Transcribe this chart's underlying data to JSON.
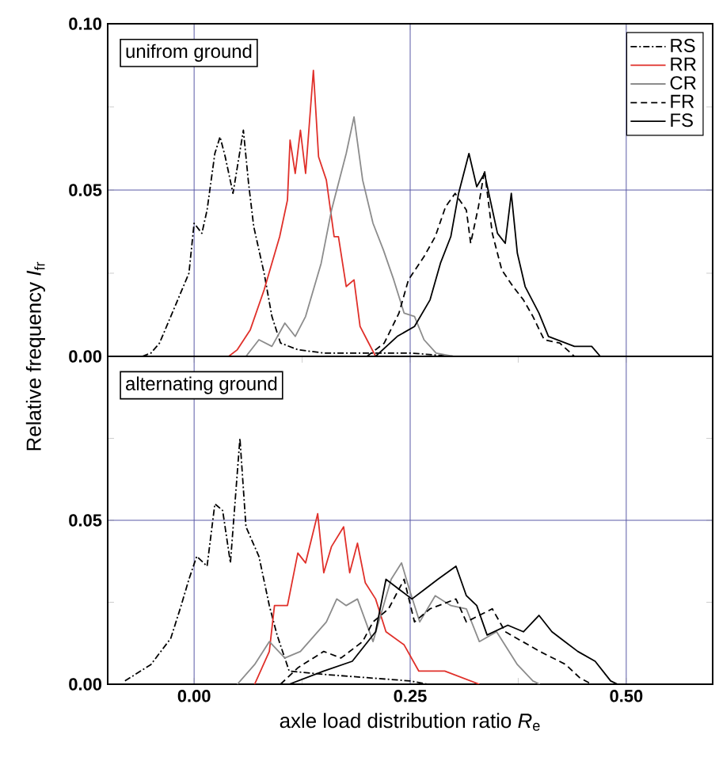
{
  "chart_data": [
    {
      "type": "line",
      "title": "unifrom ground",
      "ylabel": "Relative frequency *I*$_{fr}$",
      "grid": true,
      "legend": "top right",
      "tick_labels": "y",
      "xlim": [
        -0.1,
        0.6
      ],
      "ylim": [
        0,
        0.1
      ],
      "xticks": [
        {
          "value": 0,
          "label": null
        },
        {
          "value": 0.25,
          "label": null
        },
        {
          "value": 0.5,
          "label": null
        }
      ],
      "yticks": [
        {
          "value": 0,
          "label": "0.00"
        },
        {
          "value": 0.025,
          "label": null
        },
        {
          "value": 0.05,
          "label": "0.05"
        },
        {
          "value": 0.075,
          "label": null
        },
        {
          "value": 0.1,
          "label": "0.10"
        }
      ],
      "series": [
        {
          "name": "RS",
          "color": "#000000",
          "line_style": "dashdot",
          "x": [
            -0.06,
            -0.05,
            -0.04,
            -0.027,
            -0.006,
            0.0,
            0.009,
            0.015,
            0.024,
            0.03,
            0.036,
            0.045,
            0.057,
            0.063,
            0.069,
            0.081,
            0.09,
            0.1,
            0.12,
            0.15,
            0.2,
            0.25,
            0.3
          ],
          "values": [
            0,
            0.001,
            0.004,
            0.012,
            0.025,
            0.04,
            0.037,
            0.044,
            0.061,
            0.066,
            0.06,
            0.049,
            0.068,
            0.052,
            0.039,
            0.025,
            0.012,
            0.004,
            0.002,
            0.001,
            0.001,
            0.001,
            0
          ]
        },
        {
          "name": "RR",
          "color": "#e0302a",
          "line_style": "solid",
          "x": [
            0.04,
            0.05,
            0.065,
            0.081,
            0.099,
            0.108,
            0.111,
            0.117,
            0.123,
            0.129,
            0.138,
            0.144,
            0.153,
            0.162,
            0.167,
            0.176,
            0.185,
            0.192,
            0.2,
            0.21
          ],
          "values": [
            0,
            0.002,
            0.008,
            0.02,
            0.036,
            0.047,
            0.065,
            0.055,
            0.068,
            0.055,
            0.086,
            0.06,
            0.053,
            0.036,
            0.036,
            0.021,
            0.023,
            0.009,
            0.005,
            0
          ]
        },
        {
          "name": "CR",
          "color": "#8c8c8c",
          "line_style": "solid",
          "x": [
            0.06,
            0.075,
            0.09,
            0.105,
            0.117,
            0.129,
            0.147,
            0.159,
            0.171,
            0.176,
            0.185,
            0.195,
            0.207,
            0.219,
            0.231,
            0.243,
            0.255,
            0.266,
            0.28,
            0.3
          ],
          "values": [
            0,
            0.005,
            0.003,
            0.01,
            0.006,
            0.012,
            0.028,
            0.044,
            0.056,
            0.061,
            0.072,
            0.053,
            0.04,
            0.032,
            0.023,
            0.013,
            0.012,
            0.005,
            0.001,
            0
          ]
        },
        {
          "name": "FR",
          "color": "#000000",
          "line_style": "dashed",
          "x": [
            0.2,
            0.22,
            0.237,
            0.248,
            0.266,
            0.279,
            0.291,
            0.302,
            0.315,
            0.32,
            0.329,
            0.336,
            0.345,
            0.356,
            0.369,
            0.381,
            0.392,
            0.405,
            0.423,
            0.44
          ],
          "values": [
            0,
            0.004,
            0.013,
            0.023,
            0.03,
            0.036,
            0.045,
            0.049,
            0.044,
            0.034,
            0.045,
            0.056,
            0.037,
            0.026,
            0.021,
            0.017,
            0.012,
            0.005,
            0.004,
            0
          ]
        },
        {
          "name": "FS",
          "color": "#000000",
          "line_style": "solid",
          "x": [
            0.21,
            0.235,
            0.255,
            0.273,
            0.285,
            0.297,
            0.306,
            0.318,
            0.327,
            0.336,
            0.351,
            0.36,
            0.367,
            0.374,
            0.383,
            0.399,
            0.41,
            0.44,
            0.46,
            0.47
          ],
          "values": [
            0,
            0.006,
            0.009,
            0.017,
            0.028,
            0.036,
            0.049,
            0.061,
            0.051,
            0.055,
            0.037,
            0.034,
            0.049,
            0.031,
            0.021,
            0.013,
            0.006,
            0.003,
            0.003,
            0
          ]
        }
      ]
    },
    {
      "type": "line",
      "title": "alternating ground",
      "xlabel": "axle load distribution ratio *R*$_{e}$",
      "grid": true,
      "xlim": [
        -0.1,
        0.6
      ],
      "ylim": [
        0,
        0.1
      ],
      "xticks": [
        {
          "value": 0,
          "label": "0.00"
        },
        {
          "value": 0.125,
          "label": null
        },
        {
          "value": 0.25,
          "label": "0.25"
        },
        {
          "value": 0.375,
          "label": null
        },
        {
          "value": 0.5,
          "label": "0.50"
        }
      ],
      "yticks": [
        {
          "value": 0,
          "label": "0.00"
        },
        {
          "value": 0.025,
          "label": null
        },
        {
          "value": 0.05,
          "label": "0.05"
        },
        {
          "value": 0.075,
          "label": null
        },
        {
          "value": 0.1,
          "label": null
        }
      ],
      "series": [
        {
          "color": "#000000",
          "line_style": "dashdot",
          "x": [
            -0.08,
            -0.05,
            -0.027,
            -0.015,
            -0.006,
            0.003,
            0.015,
            0.024,
            0.033,
            0.042,
            0.053,
            0.06,
            0.075,
            0.087,
            0.096,
            0.11,
            0.15,
            0.2,
            0.25,
            0.27
          ],
          "values": [
            0.001,
            0.006,
            0.014,
            0.024,
            0.032,
            0.039,
            0.036,
            0.055,
            0.053,
            0.037,
            0.075,
            0.048,
            0.039,
            0.024,
            0.015,
            0.004,
            0.003,
            0.002,
            0.001,
            0
          ]
        },
        {
          "color": "#e0302a",
          "line_style": "solid",
          "x": [
            0.07,
            0.087,
            0.093,
            0.108,
            0.12,
            0.129,
            0.143,
            0.15,
            0.159,
            0.173,
            0.18,
            0.189,
            0.198,
            0.21,
            0.222,
            0.243,
            0.26,
            0.29,
            0.33
          ],
          "values": [
            0,
            0.01,
            0.024,
            0.024,
            0.04,
            0.037,
            0.052,
            0.034,
            0.042,
            0.048,
            0.034,
            0.043,
            0.031,
            0.026,
            0.016,
            0.012,
            0.004,
            0.004,
            0
          ]
        },
        {
          "color": "#8c8c8c",
          "line_style": "solid",
          "x": [
            0.05,
            0.07,
            0.087,
            0.105,
            0.123,
            0.153,
            0.165,
            0.176,
            0.189,
            0.207,
            0.228,
            0.24,
            0.249,
            0.261,
            0.279,
            0.297,
            0.315,
            0.33,
            0.35,
            0.374,
            0.392,
            0.4
          ],
          "values": [
            0,
            0.006,
            0.013,
            0.008,
            0.01,
            0.019,
            0.026,
            0.024,
            0.026,
            0.013,
            0.032,
            0.037,
            0.029,
            0.019,
            0.027,
            0.024,
            0.023,
            0.013,
            0.016,
            0.006,
            0.001,
            0
          ]
        },
        {
          "color": "#000000",
          "line_style": "dashed",
          "x": [
            0.1,
            0.12,
            0.15,
            0.17,
            0.195,
            0.207,
            0.225,
            0.243,
            0.255,
            0.273,
            0.303,
            0.315,
            0.345,
            0.36,
            0.38,
            0.4,
            0.43,
            0.446,
            0.46
          ],
          "values": [
            0,
            0.005,
            0.01,
            0.008,
            0.013,
            0.019,
            0.023,
            0.032,
            0.019,
            0.023,
            0.026,
            0.019,
            0.023,
            0.016,
            0.013,
            0.01,
            0.006,
            0.002,
            0
          ]
        },
        {
          "color": "#000000",
          "line_style": "solid",
          "x": [
            0.11,
            0.15,
            0.183,
            0.21,
            0.222,
            0.237,
            0.252,
            0.267,
            0.282,
            0.303,
            0.315,
            0.327,
            0.339,
            0.363,
            0.381,
            0.399,
            0.414,
            0.429,
            0.444,
            0.464,
            0.482,
            0.49
          ],
          "values": [
            0,
            0.004,
            0.007,
            0.016,
            0.032,
            0.029,
            0.026,
            0.029,
            0.032,
            0.036,
            0.027,
            0.024,
            0.015,
            0.018,
            0.016,
            0.021,
            0.016,
            0.013,
            0.01,
            0.007,
            0.001,
            0
          ]
        }
      ]
    }
  ]
}
